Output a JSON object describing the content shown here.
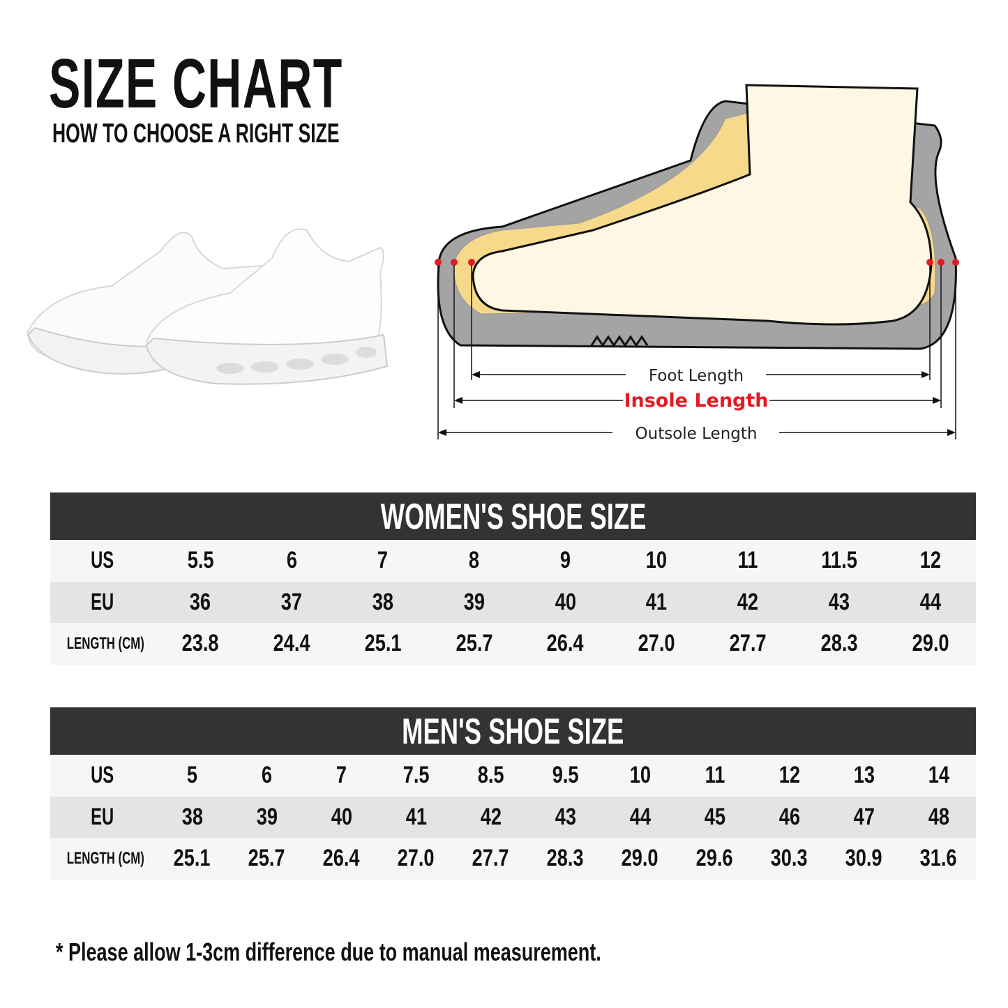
{
  "header": {
    "title": "SIZE CHART",
    "subtitle": "HOW TO CHOOSE A RIGHT SIZE"
  },
  "diagram": {
    "foot_length": "Foot Length",
    "insole_length": "Insole Length",
    "outsole_length": "Outsole Length",
    "accent": "#e31b23"
  },
  "tables": [
    {
      "title": "WOMEN'S SHOE SIZE",
      "rows": [
        {
          "label": "US",
          "values": [
            "5.5",
            "6",
            "7",
            "8",
            "9",
            "10",
            "11",
            "11.5",
            "12"
          ]
        },
        {
          "label": "EU",
          "values": [
            "36",
            "37",
            "38",
            "39",
            "40",
            "41",
            "42",
            "43",
            "44"
          ]
        },
        {
          "label": "LENGTH (CM)",
          "values": [
            "23.8",
            "24.4",
            "25.1",
            "25.7",
            "26.4",
            "27.0",
            "27.7",
            "28.3",
            "29.0"
          ]
        }
      ]
    },
    {
      "title": "MEN'S SHOE SIZE",
      "rows": [
        {
          "label": "US",
          "values": [
            "5",
            "6",
            "7",
            "7.5",
            "8.5",
            "9.5",
            "10",
            "11",
            "12",
            "13",
            "14"
          ]
        },
        {
          "label": "EU",
          "values": [
            "38",
            "39",
            "40",
            "41",
            "42",
            "43",
            "44",
            "45",
            "46",
            "47",
            "48"
          ]
        },
        {
          "label": "LENGTH (CM)",
          "values": [
            "25.1",
            "25.7",
            "26.4",
            "27.0",
            "27.7",
            "28.3",
            "29.0",
            "29.6",
            "30.3",
            "30.9",
            "31.6"
          ]
        }
      ]
    }
  ],
  "footnote": "* Please allow 1-3cm difference due to manual measurement."
}
